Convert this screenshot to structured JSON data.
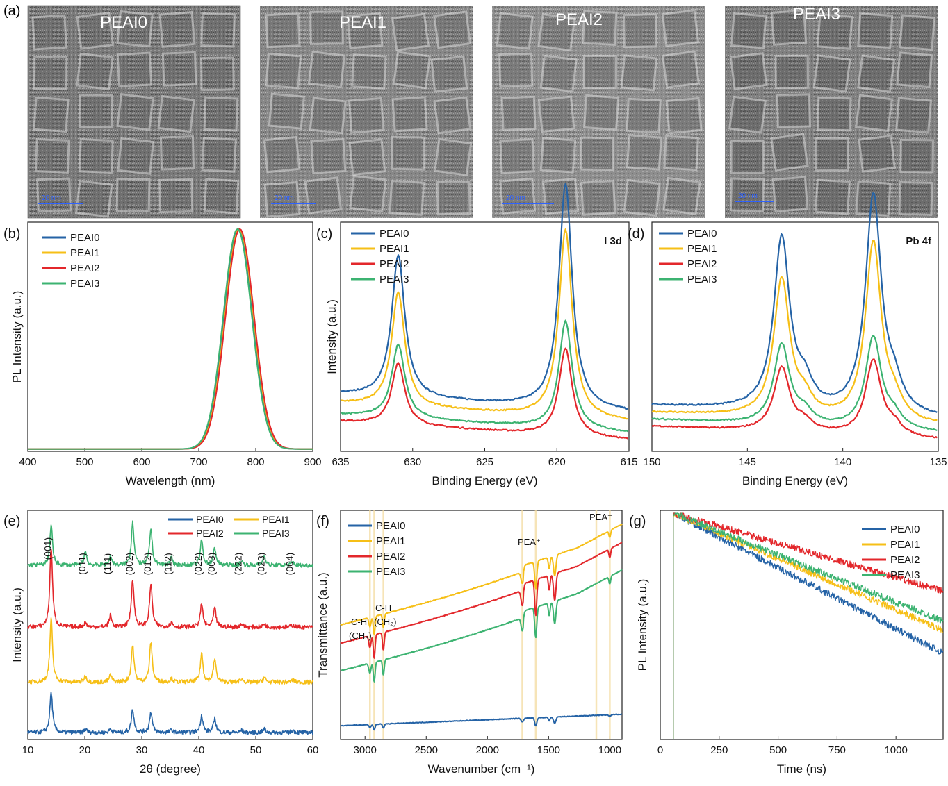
{
  "colors": {
    "PEAI0": "#2563a6",
    "PEAI1": "#f6bf17",
    "PEAI2": "#e3272b",
    "PEAI3": "#3cb371"
  },
  "panel_a": {
    "label": "(a)",
    "images": [
      {
        "title": "PEAI0",
        "scale_text": "20 nm"
      },
      {
        "title": "PEAI1",
        "scale_text": "20 nm"
      },
      {
        "title": "PEAI2",
        "scale_text": "20 nm"
      },
      {
        "title": "PEAI3",
        "scale_text": "20 nm"
      }
    ]
  },
  "chart_data": [
    {
      "panel": "(b)",
      "type": "line",
      "xlabel": "Wavelength (nm)",
      "ylabel": "PL Intensity (a.u.)",
      "xlim": [
        400,
        900
      ],
      "xticks": [
        "400",
        "500",
        "600",
        "700",
        "800",
        "900"
      ],
      "legend_position": "top-left",
      "series": [
        {
          "name": "PEAI0",
          "peak_center": 770,
          "peak_width": 25,
          "peak_height": 1.0,
          "baseline": 0.0
        },
        {
          "name": "PEAI1",
          "peak_center": 771,
          "peak_width": 25,
          "peak_height": 1.0,
          "baseline": 0.0
        },
        {
          "name": "PEAI2",
          "peak_center": 772,
          "peak_width": 25,
          "peak_height": 1.0,
          "baseline": 0.0
        },
        {
          "name": "PEAI3",
          "peak_center": 768,
          "peak_width": 25,
          "peak_height": 1.0,
          "baseline": 0.0
        }
      ]
    },
    {
      "panel": "(c)",
      "type": "line",
      "xlabel": "Binding Energy (eV)",
      "ylabel": "Intensity (a.u.)",
      "annotation": "I 3d",
      "xlim": [
        635,
        615
      ],
      "xticks": [
        "635",
        "630",
        "625",
        "620",
        "615"
      ],
      "legend_position": "top-left",
      "peaks": [
        631.0,
        619.4
      ],
      "series": [
        {
          "name": "PEAI0",
          "baseline": 0.25,
          "heights": [
            0.62,
            0.98
          ]
        },
        {
          "name": "PEAI1",
          "baseline": 0.21,
          "heights": [
            0.5,
            0.82
          ]
        },
        {
          "name": "PEAI2",
          "baseline": 0.13,
          "heights": [
            0.27,
            0.38
          ]
        },
        {
          "name": "PEAI3",
          "baseline": 0.16,
          "heights": [
            0.32,
            0.47
          ]
        }
      ]
    },
    {
      "panel": "(d)",
      "type": "line",
      "xlabel": "Binding Energy (eV)",
      "ylabel": "",
      "annotation": "Pb 4f",
      "xlim": [
        150,
        135
      ],
      "xticks": [
        "150",
        "145",
        "140",
        "135"
      ],
      "legend_position": "top-left",
      "peaks": [
        143.2,
        138.4,
        142.0,
        137.3
      ],
      "series": [
        {
          "name": "PEAI0",
          "baseline": 0.2,
          "heights": [
            0.75,
            0.95,
            0.1,
            0.1
          ]
        },
        {
          "name": "PEAI1",
          "baseline": 0.17,
          "heights": [
            0.6,
            0.78,
            0.07,
            0.07
          ]
        },
        {
          "name": "PEAI2",
          "baseline": 0.11,
          "heights": [
            0.28,
            0.33,
            0.04,
            0.04
          ]
        },
        {
          "name": "PEAI3",
          "baseline": 0.14,
          "heights": [
            0.35,
            0.4,
            0.05,
            0.05
          ]
        }
      ]
    },
    {
      "panel": "(e)",
      "type": "line",
      "xlabel": "2θ (degree)",
      "ylabel": "Intensity (a.u.)",
      "xlim": [
        10,
        60
      ],
      "xticks": [
        "10",
        "20",
        "30",
        "40",
        "50",
        "60"
      ],
      "legend_position": "top-right",
      "reflections": [
        "(001)",
        "(011)",
        "(111)",
        "(002)",
        "(012)",
        "(112)",
        "(022)",
        "(003)",
        "(222)",
        "(023)",
        "(004)"
      ],
      "peak_positions": [
        14.1,
        20.1,
        24.5,
        28.4,
        31.6,
        35.2,
        40.5,
        42.8,
        47.5,
        51.5,
        56.5
      ],
      "series": [
        {
          "name": "PEAI0",
          "offset": 0.0,
          "heights": [
            0.35,
            0.03,
            0.03,
            0.2,
            0.18,
            0.02,
            0.15,
            0.12,
            0.02,
            0.03,
            0.02
          ]
        },
        {
          "name": "PEAI1",
          "offset": 0.22,
          "heights": [
            0.55,
            0.05,
            0.06,
            0.32,
            0.35,
            0.03,
            0.25,
            0.2,
            0.03,
            0.04,
            0.02
          ]
        },
        {
          "name": "PEAI2",
          "offset": 0.46,
          "heights": [
            0.7,
            0.04,
            0.1,
            0.42,
            0.38,
            0.04,
            0.2,
            0.16,
            0.03,
            0.03,
            0.02
          ]
        },
        {
          "name": "PEAI3",
          "offset": 0.73,
          "heights": [
            0.35,
            0.12,
            0.08,
            0.38,
            0.32,
            0.06,
            0.22,
            0.15,
            0.04,
            0.09,
            0.03
          ]
        }
      ]
    },
    {
      "panel": "(f)",
      "type": "line",
      "xlabel": "Wavenumber (cm⁻¹)",
      "ylabel": "Transmittance (a.u.)",
      "xlim": [
        3200,
        900
      ],
      "xticks": [
        "3000",
        "2500",
        "2000",
        "1500",
        "1000"
      ],
      "legend_position": "top-left",
      "annotations": [
        "C-H",
        "(CH₃)",
        "C-H",
        "(CH₂)",
        "PEA⁺",
        "PEA⁺"
      ],
      "highlight_bands": [
        2960,
        2925,
        2850,
        1715,
        1605,
        1110,
        1000
      ],
      "series": [
        {
          "name": "PEAI0",
          "offset": 0.06,
          "slope": 0.05,
          "dip_scale": 0.3
        },
        {
          "name": "PEAI1",
          "offset": 0.5,
          "slope": 0.4,
          "dip_scale": 1.0
        },
        {
          "name": "PEAI2",
          "offset": 0.42,
          "slope": 0.4,
          "dip_scale": 1.3
        },
        {
          "name": "PEAI3",
          "offset": 0.3,
          "slope": 0.4,
          "dip_scale": 1.1
        }
      ]
    },
    {
      "panel": "(g)",
      "type": "line",
      "xlabel": "Time (ns)",
      "ylabel": "PL Intensity (a.u.)",
      "xlim": [
        0,
        1200
      ],
      "xticks": [
        "0",
        "250",
        "500",
        "750",
        "1000"
      ],
      "legend_position": "top-right",
      "pulse_time": 55,
      "series": [
        {
          "name": "PEAI0",
          "tau_ns": 200
        },
        {
          "name": "PEAI1",
          "tau_ns": 240
        },
        {
          "name": "PEAI2",
          "tau_ns": 360
        },
        {
          "name": "PEAI3",
          "tau_ns": 260
        }
      ]
    }
  ]
}
